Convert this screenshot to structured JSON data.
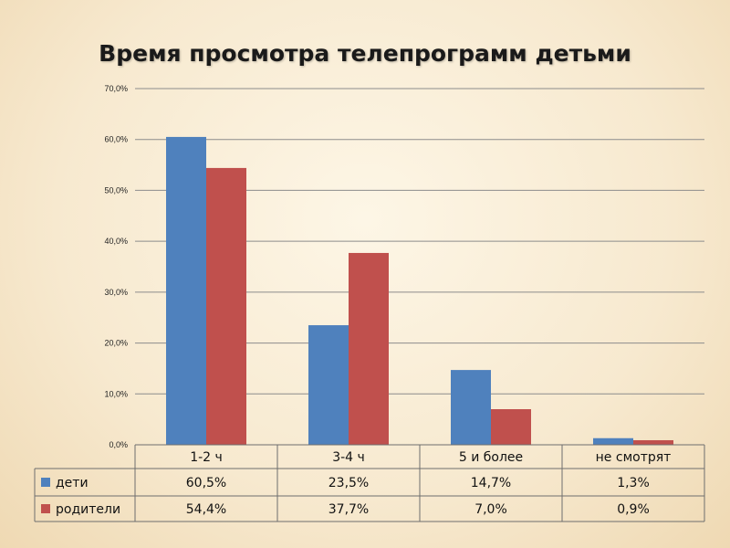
{
  "chart_data": {
    "type": "bar",
    "title": "Время просмотра телепрограмм детьми",
    "categories": [
      "1-2 ч",
      "3-4 ч",
      "5 и более",
      "не смотрят"
    ],
    "series": [
      {
        "name": "дети",
        "values": [
          60.5,
          23.5,
          14.7,
          1.3
        ],
        "color": "#4f81bd",
        "labels": [
          "60,5%",
          "23,5%",
          "14,7%",
          "1,3%"
        ]
      },
      {
        "name": "родители",
        "values": [
          54.4,
          37.7,
          7.0,
          0.9
        ],
        "color": "#c0504d",
        "labels": [
          "54,4%",
          "37,7%",
          "7,0%",
          "0,9%"
        ]
      }
    ],
    "ylim": [
      0,
      70
    ],
    "yticks": [
      0,
      10,
      20,
      30,
      40,
      50,
      60,
      70
    ],
    "ytick_labels": [
      "0,0%",
      "10,0%",
      "20,0%",
      "30,0%",
      "40,0%",
      "50,0%",
      "60,0%",
      "70,0%"
    ],
    "grid": true,
    "data_table": true
  }
}
